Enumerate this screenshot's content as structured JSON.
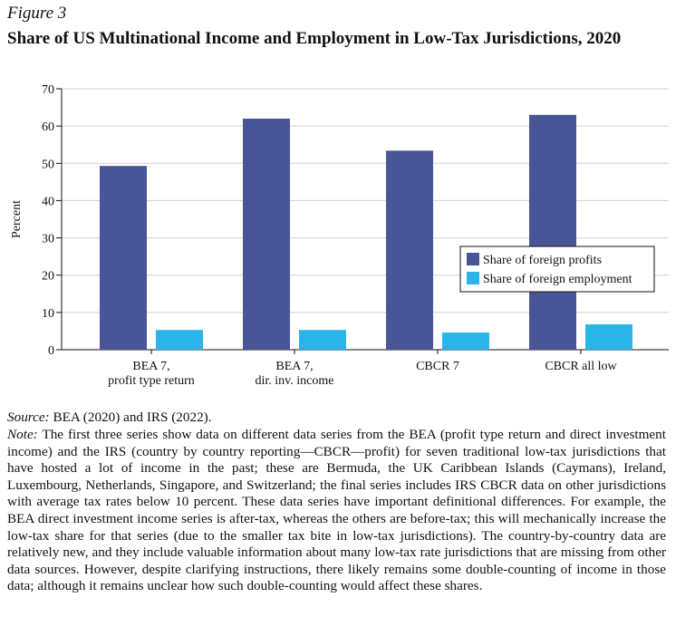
{
  "figure_label": "Figure 3",
  "chart_data": {
    "type": "bar",
    "title": "Share of US Multinational Income and Employment in Low-Tax Jurisdictions, 2020",
    "ylabel": "Percent",
    "categories": [
      [
        "BEA 7,",
        "profit type return"
      ],
      [
        "BEA 7,",
        "dir. inv. income"
      ],
      [
        "CBCR 7"
      ],
      [
        "CBCR all low"
      ]
    ],
    "series": [
      {
        "name": "Share of foreign profits",
        "color": "#4a5597",
        "values": [
          49.3,
          62,
          53.4,
          63
        ]
      },
      {
        "name": "Share of foreign employment",
        "color": "#29b5e8",
        "values": [
          5.3,
          5.3,
          4.6,
          6.8
        ]
      }
    ],
    "ylim": [
      0,
      70
    ],
    "yticks": [
      0,
      10,
      20,
      30,
      40,
      50,
      60,
      70
    ],
    "grid": true,
    "legend": "right"
  },
  "source_label": "Source:",
  "source": "BEA (2020) and IRS (2022).",
  "note_label": "Note:",
  "note": "The first three series show data on different data series from the BEA (profit type return and direct investment income) and the IRS (country by country reporting—CBCR—profit) for seven traditional low-tax jurisdictions that have hosted a lot of income in the past; these are Bermuda, the UK Caribbean Islands (Caymans), Ireland, Luxembourg, Netherlands, Singapore, and Switzerland; the final series includes IRS CBCR data on other jurisdictions with average tax rates below 10 percent. These data series have important definitional differences. For example, the BEA direct investment income series is after-tax, whereas the others are before-tax; this will mechanically increase the low-tax share for that series (due to the smaller tax bite in low-tax jurisdictions). The country-by-country data are relatively new, and they include valuable information about many low-tax rate jurisdictions that are missing from other data sources. However, despite clarifying instructions, there likely remains some double-counting of income in those data; although it remains unclear how such double-counting would affect these shares."
}
